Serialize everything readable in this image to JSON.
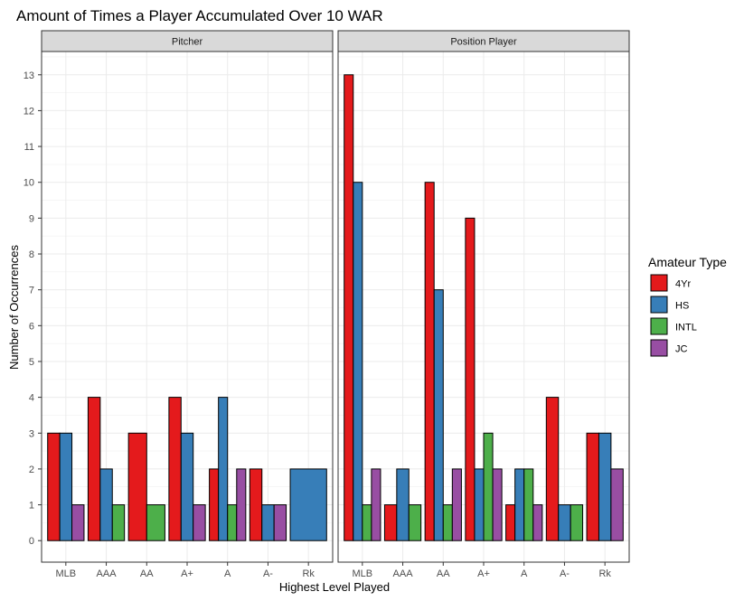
{
  "chart_data": {
    "type": "bar",
    "title": "Amount of Times a Player Accumulated Over 10 WAR",
    "xlabel": "Highest Level Played",
    "ylabel": "Number of Occurrences",
    "ylim": [
      -0.6,
      13.65
    ],
    "yticks": [
      0,
      1,
      2,
      3,
      4,
      5,
      6,
      7,
      8,
      9,
      10,
      11,
      12,
      13
    ],
    "grid": true,
    "categories": [
      "MLB",
      "AAA",
      "AA",
      "A+",
      "A",
      "A-",
      "Rk"
    ],
    "legend": {
      "title": "Amateur Type",
      "placement": "right",
      "entries": [
        {
          "name": "4Yr",
          "color": "#E41A1C"
        },
        {
          "name": "HS",
          "color": "#377EB8"
        },
        {
          "name": "INTL",
          "color": "#4DAF4A"
        },
        {
          "name": "JC",
          "color": "#984EA3"
        }
      ]
    },
    "facets": [
      {
        "name": "Pitcher",
        "groups": [
          {
            "category": "MLB",
            "bars": [
              {
                "type": "4Yr",
                "value": 3
              },
              {
                "type": "HS",
                "value": 3
              },
              {
                "type": "JC",
                "value": 1
              }
            ]
          },
          {
            "category": "AAA",
            "bars": [
              {
                "type": "4Yr",
                "value": 4
              },
              {
                "type": "HS",
                "value": 2
              },
              {
                "type": "INTL",
                "value": 1
              }
            ]
          },
          {
            "category": "AA",
            "bars": [
              {
                "type": "4Yr",
                "value": 3
              },
              {
                "type": "INTL",
                "value": 1
              }
            ]
          },
          {
            "category": "A+",
            "bars": [
              {
                "type": "4Yr",
                "value": 4
              },
              {
                "type": "HS",
                "value": 3
              },
              {
                "type": "JC",
                "value": 1
              }
            ]
          },
          {
            "category": "A",
            "bars": [
              {
                "type": "4Yr",
                "value": 2
              },
              {
                "type": "HS",
                "value": 4
              },
              {
                "type": "INTL",
                "value": 1
              },
              {
                "type": "JC",
                "value": 2
              }
            ]
          },
          {
            "category": "A-",
            "bars": [
              {
                "type": "4Yr",
                "value": 2
              },
              {
                "type": "HS",
                "value": 1
              },
              {
                "type": "JC",
                "value": 1
              }
            ]
          },
          {
            "category": "Rk",
            "bars": [
              {
                "type": "HS",
                "value": 2
              }
            ]
          }
        ]
      },
      {
        "name": "Position Player",
        "groups": [
          {
            "category": "MLB",
            "bars": [
              {
                "type": "4Yr",
                "value": 13
              },
              {
                "type": "HS",
                "value": 10
              },
              {
                "type": "INTL",
                "value": 1
              },
              {
                "type": "JC",
                "value": 2
              }
            ]
          },
          {
            "category": "AAA",
            "bars": [
              {
                "type": "4Yr",
                "value": 1
              },
              {
                "type": "HS",
                "value": 2
              },
              {
                "type": "INTL",
                "value": 1
              }
            ]
          },
          {
            "category": "AA",
            "bars": [
              {
                "type": "4Yr",
                "value": 10
              },
              {
                "type": "HS",
                "value": 7
              },
              {
                "type": "INTL",
                "value": 1
              },
              {
                "type": "JC",
                "value": 2
              }
            ]
          },
          {
            "category": "A+",
            "bars": [
              {
                "type": "4Yr",
                "value": 9
              },
              {
                "type": "HS",
                "value": 2
              },
              {
                "type": "INTL",
                "value": 3
              },
              {
                "type": "JC",
                "value": 2
              }
            ]
          },
          {
            "category": "A",
            "bars": [
              {
                "type": "4Yr",
                "value": 1
              },
              {
                "type": "HS",
                "value": 2
              },
              {
                "type": "INTL",
                "value": 2
              },
              {
                "type": "JC",
                "value": 1
              }
            ]
          },
          {
            "category": "A-",
            "bars": [
              {
                "type": "4Yr",
                "value": 4
              },
              {
                "type": "HS",
                "value": 1
              },
              {
                "type": "INTL",
                "value": 1
              }
            ]
          },
          {
            "category": "Rk",
            "bars": [
              {
                "type": "4Yr",
                "value": 3
              },
              {
                "type": "HS",
                "value": 3
              },
              {
                "type": "JC",
                "value": 2
              }
            ]
          }
        ]
      }
    ]
  }
}
